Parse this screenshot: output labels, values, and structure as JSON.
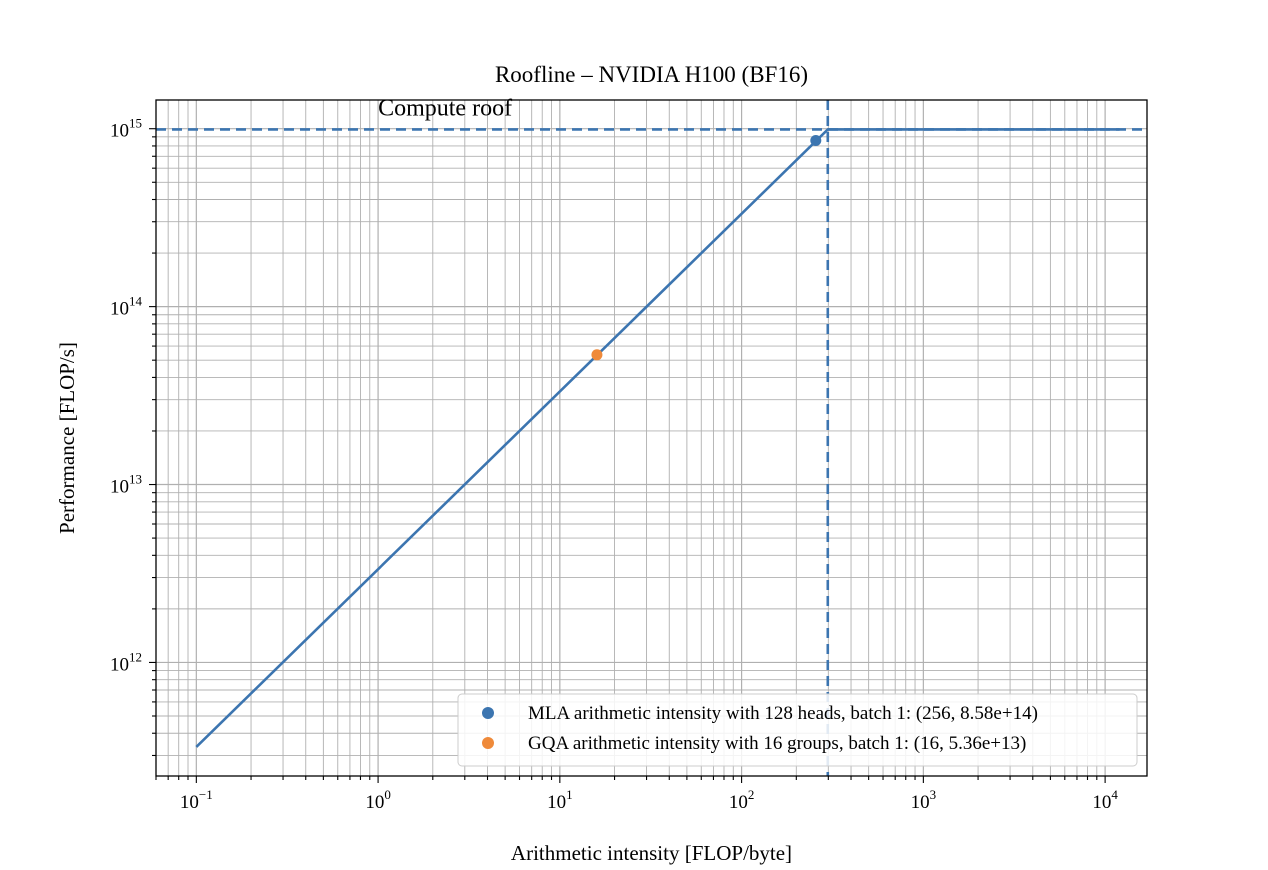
{
  "chart_data": {
    "type": "line",
    "title": "Roofline – NVIDIA H100 (BF16)",
    "xlabel": "Arithmetic intensity [FLOP/byte]",
    "ylabel": "Performance [FLOP/s]",
    "xscale": "log",
    "yscale": "log",
    "xlim": [
      0.06,
      17000
    ],
    "ylim": [
      230000000000.0,
      1450000000000000.0
    ],
    "grid": "both-major-and-minor",
    "x_ticks": [
      {
        "value": 0.1,
        "base": "10",
        "exp": "−1"
      },
      {
        "value": 1,
        "base": "10",
        "exp": "0"
      },
      {
        "value": 10,
        "base": "10",
        "exp": "1"
      },
      {
        "value": 100,
        "base": "10",
        "exp": "2"
      },
      {
        "value": 1000,
        "base": "10",
        "exp": "3"
      },
      {
        "value": 10000,
        "base": "10",
        "exp": "4"
      }
    ],
    "y_ticks": [
      {
        "value": 1000000000000.0,
        "base": "10",
        "exp": "12"
      },
      {
        "value": 10000000000000.0,
        "base": "10",
        "exp": "13"
      },
      {
        "value": 100000000000000.0,
        "base": "10",
        "exp": "14"
      },
      {
        "value": 1000000000000000.0,
        "base": "10",
        "exp": "15"
      }
    ],
    "roofline": {
      "color": "#3c75b0",
      "points": [
        [
          0.1,
          335000000000.0
        ],
        [
          298,
          990000000000000.0
        ],
        [
          12000,
          990000000000000.0
        ]
      ]
    },
    "compute_roof": {
      "y": 990000000000000.0,
      "color": "#3c75b0",
      "style": "dashed",
      "label": "Compute roof",
      "label_x": 1.0
    },
    "ridge_line": {
      "x": 298,
      "color": "#3c75b0",
      "style": "dashed"
    },
    "series": [
      {
        "name": "MLA arithmetic intensity with 128 heads, batch 1: (256, 8.58e+14)",
        "color": "#3c75b0",
        "type": "scatter",
        "x": [
          256
        ],
        "y": [
          858000000000000.0
        ]
      },
      {
        "name": "GQA arithmetic intensity with 16 groups, batch 1: (16, 5.36e+13)",
        "color": "#ef8a3a",
        "type": "scatter",
        "x": [
          16
        ],
        "y": [
          53600000000000.0
        ]
      }
    ],
    "legend_position": "lower-right"
  }
}
